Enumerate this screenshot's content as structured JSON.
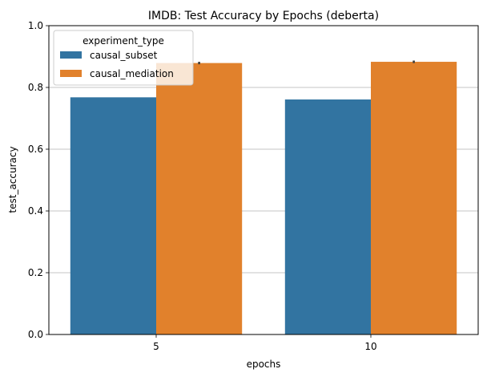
{
  "chart_data": {
    "type": "bar",
    "title": "IMDB: Test Accuracy by Epochs (deberta)",
    "xlabel": "epochs",
    "ylabel": "test_accuracy",
    "categories": [
      "5",
      "10"
    ],
    "ylim": [
      0,
      1.0
    ],
    "yticks": [
      "0.0",
      "0.2",
      "0.4",
      "0.6",
      "0.8",
      "1.0"
    ],
    "grid": "horizontal",
    "legend": {
      "title": "experiment_type",
      "placement": "top-left"
    },
    "series": [
      {
        "name": "causal_subset",
        "color": "#3274a1",
        "values": [
          0.768,
          0.761
        ],
        "error": [
          0,
          0
        ]
      },
      {
        "name": "causal_mediation",
        "color": "#e1812c",
        "values": [
          0.879,
          0.883
        ],
        "error": [
          0.004,
          0.004
        ]
      }
    ]
  }
}
